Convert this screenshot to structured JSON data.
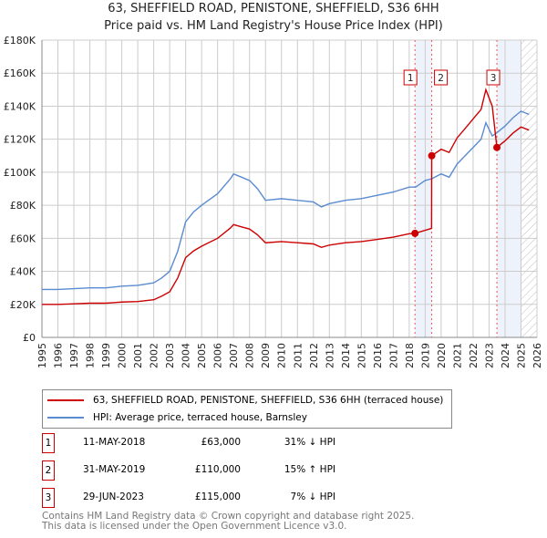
{
  "chart_data": {
    "type": "line",
    "title": "63, SHEFFIELD ROAD, PENISTONE, SHEFFIELD, S36 6HH",
    "subtitle": "Price paid vs. HM Land Registry's House Price Index (HPI)",
    "xlim": [
      1995,
      2026
    ],
    "ylim": [
      0,
      180000
    ],
    "y_ticks": [
      "£0",
      "£20K",
      "£40K",
      "£60K",
      "£80K",
      "£100K",
      "£120K",
      "£140K",
      "£160K",
      "£180K"
    ],
    "x_ticks": [
      "1995",
      "1996",
      "1997",
      "1998",
      "1999",
      "2000",
      "2001",
      "2002",
      "2003",
      "2004",
      "2005",
      "2006",
      "2007",
      "2008",
      "2009",
      "2010",
      "2011",
      "2012",
      "2013",
      "2014",
      "2015",
      "2016",
      "2017",
      "2018",
      "2019",
      "2020",
      "2021",
      "2022",
      "2023",
      "2024",
      "2025",
      "2026"
    ],
    "grid": true,
    "series": [
      {
        "name": "63, SHEFFIELD ROAD, PENISTONE, SHEFFIELD, S36 6HH (terraced house)",
        "color": "#cc0000",
        "x": [
          1995,
          1996,
          1997,
          1998,
          1999,
          2000,
          2001,
          2002,
          2002.5,
          2003,
          2003.5,
          2004,
          2004.5,
          2005,
          2006,
          2006.8,
          2007,
          2007.5,
          2008,
          2008.5,
          2009,
          2010,
          2011,
          2012,
          2012.5,
          2013,
          2014,
          2015,
          2016,
          2017,
          2018,
          2018.36,
          2019.4,
          2019.41,
          2020,
          2020.5,
          2021,
          2021.5,
          2022,
          2022.5,
          2022.8,
          2023.2,
          2023.49,
          2024,
          2024.5,
          2025,
          2025.5
        ],
        "y": [
          20000,
          20000,
          20300,
          20700,
          20700,
          21400,
          21700,
          22800,
          25000,
          27600,
          35900,
          48300,
          52400,
          55200,
          60000,
          66200,
          68300,
          66900,
          65600,
          62100,
          57300,
          58000,
          57300,
          56600,
          54500,
          55900,
          57300,
          58000,
          59300,
          60700,
          62800,
          63000,
          66000,
          110000,
          113900,
          112000,
          120800,
          126500,
          132300,
          138000,
          150000,
          140000,
          115000,
          119000,
          123700,
          127400,
          125500
        ]
      },
      {
        "name": "HPI: Average price, terraced house, Barnsley",
        "color": "#5b8bd0",
        "x": [
          1995,
          1996,
          1997,
          1998,
          1999,
          2000,
          2001,
          2002,
          2002.5,
          2003,
          2003.5,
          2004,
          2004.5,
          2005,
          2006,
          2006.8,
          2007,
          2007.5,
          2008,
          2008.5,
          2009,
          2010,
          2011,
          2012,
          2012.5,
          2013,
          2014,
          2015,
          2016,
          2017,
          2018,
          2018.4,
          2019,
          2019.4,
          2020,
          2020.5,
          2021,
          2021.5,
          2022,
          2022.5,
          2022.8,
          2023.2,
          2023.5,
          2024,
          2024.5,
          2025,
          2025.5
        ],
        "y": [
          29000,
          29000,
          29500,
          30000,
          30000,
          31000,
          31500,
          33000,
          36000,
          40000,
          52000,
          70000,
          76000,
          80000,
          87000,
          96000,
          99000,
          97000,
          95000,
          90000,
          83000,
          84000,
          83000,
          82000,
          79000,
          81000,
          83000,
          84000,
          86000,
          88000,
          91000,
          91000,
          95000,
          96000,
          99000,
          97000,
          105000,
          110000,
          115000,
          120000,
          130000,
          122000,
          124000,
          128000,
          133000,
          137000,
          135000
        ]
      }
    ],
    "sales": [
      {
        "label": "1",
        "x": 2018.36,
        "y": 63000,
        "date": "11-MAY-2018",
        "price": "£63,000",
        "hpi": "31% ↓ HPI"
      },
      {
        "label": "2",
        "x": 2019.41,
        "y": 110000,
        "date": "31-MAY-2019",
        "price": "£110,000",
        "hpi": "15% ↑ HPI"
      },
      {
        "label": "3",
        "x": 2023.49,
        "y": 115000,
        "date": "29-JUN-2023",
        "price": "£115,000",
        "hpi": "7% ↓ HPI"
      }
    ],
    "legend_placement": "below"
  },
  "footer": {
    "line1": "Contains HM Land Registry data © Crown copyright and database right 2025.",
    "line2": "This data is licensed under the Open Government Licence v3.0."
  }
}
